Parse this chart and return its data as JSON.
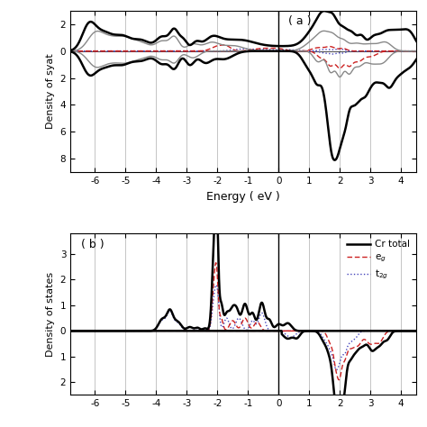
{
  "xlabel": "Energy ( eV )",
  "ylabel_a": "Density of syat",
  "ylabel_b": "Density of states",
  "xlim": [
    -6.8,
    4.5
  ],
  "ylim_a": [
    -9.0,
    3.0
  ],
  "ylim_b": [
    -2.5,
    3.8
  ],
  "xticks": [
    -6,
    -5,
    -4,
    -3,
    -2,
    -1,
    0,
    1,
    2,
    3,
    4
  ],
  "yticks_a": [
    -8,
    -6,
    -4,
    -2,
    0,
    2
  ],
  "yticks_b": [
    -2,
    -1,
    0,
    1,
    2,
    3
  ],
  "ytick_labels_a": [
    "8",
    "6",
    "4",
    "2",
    "0",
    "2"
  ],
  "ytick_labels_b": [
    "2",
    "1",
    "0",
    "1",
    "2",
    "3"
  ],
  "grid_color": "#bbbbbb",
  "bg_color": "#ffffff",
  "color_black": "#000000",
  "color_gray": "#888888",
  "color_red": "#cc2222",
  "color_blue": "#4444bb",
  "lw_thick": 1.8,
  "lw_thin": 1.0,
  "annot_a": "( a )",
  "annot_b": "( b )",
  "legend_label_total": "Cr total",
  "legend_label_eg": "e$_g$",
  "legend_label_t2g": "t$_{2g}$"
}
